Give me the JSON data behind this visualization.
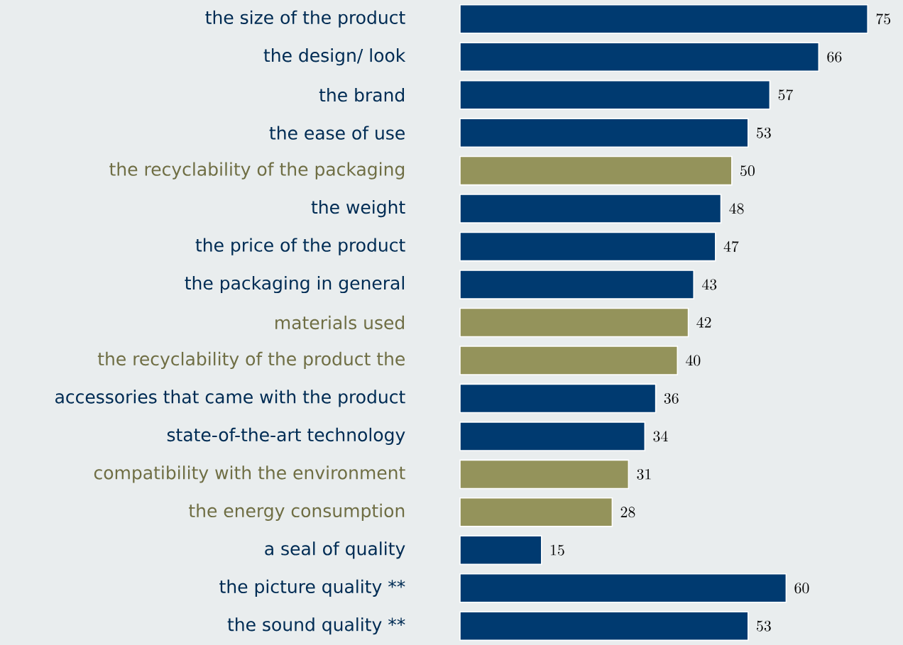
{
  "chart_data": {
    "type": "bar",
    "orientation": "horizontal",
    "categories": [
      "the size of the product",
      "the design/ look",
      "the brand",
      "the ease of use",
      "the recyclability of the packaging",
      "the weight",
      "the price of the product",
      "the packaging in general",
      "materials used",
      "the recyclability of the product the",
      "accessories that came with the product",
      "state-of-the-art technology",
      "compatibility with the environment",
      "the energy consumption",
      "a seal of quality",
      "the picture quality **",
      "the sound quality **"
    ],
    "values": [
      75,
      66,
      57,
      53,
      50,
      48,
      47,
      43,
      42,
      40,
      36,
      34,
      31,
      28,
      15,
      60,
      53
    ],
    "colors": [
      "#003a70",
      "#003a70",
      "#003a70",
      "#003a70",
      "#94935b",
      "#003a70",
      "#003a70",
      "#003a70",
      "#94935b",
      "#94935b",
      "#003a70",
      "#003a70",
      "#94935b",
      "#94935b",
      "#003a70",
      "#003a70",
      "#003a70"
    ],
    "xlim": [
      0,
      81.5
    ],
    "data_labels": true
  }
}
